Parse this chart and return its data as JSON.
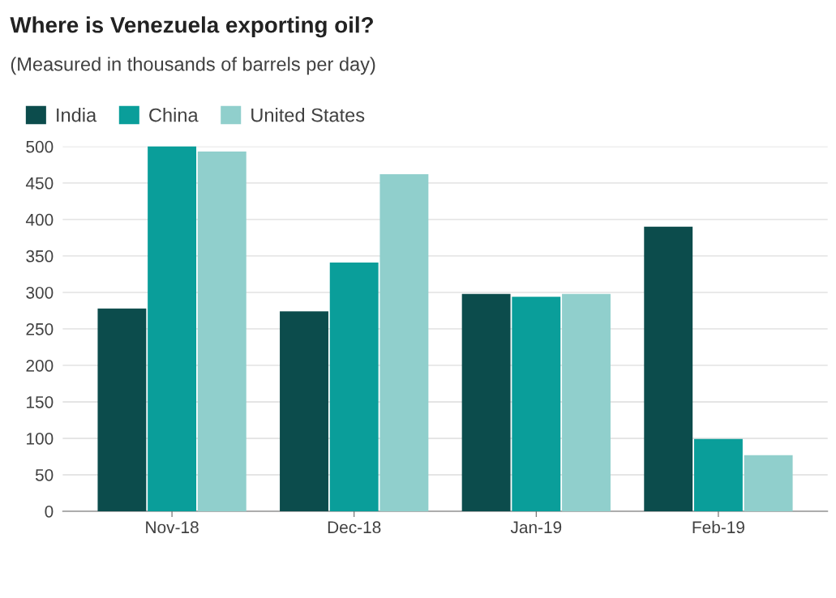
{
  "chart_data": {
    "type": "bar",
    "title": "Where is Venezuela exporting oil?",
    "subtitle": "(Measured in thousands of barrels per day)",
    "categories": [
      "Nov-18",
      "Dec-18",
      "Jan-19",
      "Feb-19"
    ],
    "series": [
      {
        "name": "India",
        "color": "#0c4c4c",
        "values": [
          278,
          274,
          298,
          390
        ]
      },
      {
        "name": "China",
        "color": "#0a9e9a",
        "values": [
          500,
          341,
          294,
          99
        ]
      },
      {
        "name": "United States",
        "color": "#90cfcc",
        "values": [
          493,
          462,
          298,
          77
        ]
      }
    ],
    "ylim": [
      0,
      500
    ],
    "yticks": [
      0,
      50,
      100,
      150,
      200,
      250,
      300,
      350,
      400,
      450,
      500
    ],
    "grid": "y",
    "legend": "top left"
  }
}
